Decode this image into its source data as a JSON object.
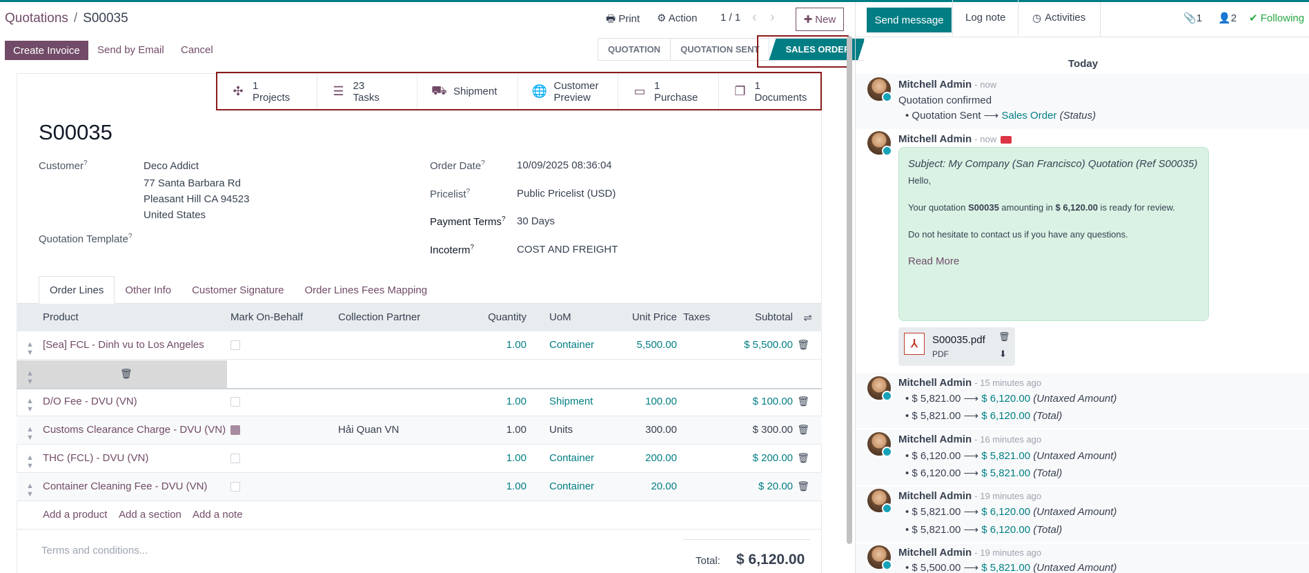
{
  "breadcrumb": {
    "parent": "Quotations",
    "separator": "/",
    "current": "S00035"
  },
  "header": {
    "print_label": "Print",
    "action_label": "Action",
    "pager": "1 / 1",
    "new_label": "New"
  },
  "actions": {
    "create_invoice": "Create Invoice",
    "send_by_email": "Send by Email",
    "cancel": "Cancel"
  },
  "status_steps": [
    "QUOTATION",
    "QUOTATION SENT",
    "SALES ORDER"
  ],
  "smart_buttons": [
    {
      "count": "1",
      "label": "Projects",
      "icon": "puzzle-icon"
    },
    {
      "count": "23",
      "label": "Tasks",
      "icon": "tasks-icon"
    },
    {
      "count": "",
      "label": "Shipment",
      "icon": "truck-icon"
    },
    {
      "count": "Customer",
      "label": "Preview",
      "icon": "globe-icon"
    },
    {
      "count": "1",
      "label": "Purchase",
      "icon": "credit-card-icon"
    },
    {
      "count": "1",
      "label": "Documents",
      "icon": "documents-icon"
    }
  ],
  "order": {
    "name": "S00035",
    "customer_label": "Customer",
    "customer_name": "Deco Addict",
    "address_1": "77 Santa Barbara Rd",
    "address_2": "Pleasant Hill CA 94523",
    "address_3": "United States",
    "template_label": "Quotation Template",
    "order_date_label": "Order Date",
    "order_date": "10/09/2025 08:36:04",
    "pricelist_label": "Pricelist",
    "pricelist": "Public Pricelist (USD)",
    "payment_terms_label": "Payment Terms",
    "payment_terms": "30 Days",
    "incoterm_label": "Incoterm",
    "incoterm": "COST AND FREIGHT",
    "help_mark": "?"
  },
  "tabs": [
    "Order Lines",
    "Other Info",
    "Customer Signature",
    "Order Lines Fees Mapping"
  ],
  "table": {
    "columns": [
      "Product",
      "Mark On-Behalf",
      "Collection Partner",
      "Quantity",
      "UoM",
      "Unit Price",
      "Taxes",
      "Subtotal"
    ],
    "rows": [
      {
        "product": "[Sea] FCL - Dinh vu to Los Angeles",
        "checked": false,
        "partner": "",
        "qty": "1.00",
        "uom": "Container",
        "price": "5,500.00",
        "subtotal": "$ 5,500.00"
      },
      {
        "product": "D/O Fee - DVU (VN)",
        "checked": false,
        "partner": "",
        "qty": "1.00",
        "uom": "Shipment",
        "price": "100.00",
        "subtotal": "$ 100.00"
      },
      {
        "product": "Customs Clearance Charge - DVU (VN)",
        "checked": true,
        "partner": "Hải Quan VN",
        "qty": "1.00",
        "uom": "Units",
        "price": "300.00",
        "subtotal": "$ 300.00"
      },
      {
        "product": "THC (FCL) - DVU (VN)",
        "checked": false,
        "partner": "",
        "qty": "1.00",
        "uom": "Container",
        "price": "200.00",
        "subtotal": "$ 200.00"
      },
      {
        "product": "Container Cleaning Fee - DVU (VN)",
        "checked": false,
        "partner": "",
        "qty": "1.00",
        "uom": "Container",
        "price": "20.00",
        "subtotal": "$ 20.00"
      }
    ],
    "add_product": "Add a product",
    "add_section": "Add a section",
    "add_note": "Add a note"
  },
  "terms_placeholder": "Terms and conditions...",
  "total_label": "Total:",
  "total_value": "$ 6,120.00",
  "chatter": {
    "send_message": "Send message",
    "log_note": "Log note",
    "activities": "Activities",
    "attachments_count": "1",
    "followers_count": "2",
    "following": "Following",
    "today": "Today",
    "author": "Mitchell Admin",
    "msg1": {
      "time": "- now",
      "text": "Quotation confirmed",
      "from": "Quotation Sent",
      "to": "Sales Order",
      "field": "(Status)"
    },
    "msg2": {
      "time": "- now",
      "subject": "Subject: My Company (San Francisco) Quotation (Ref S00035)",
      "hello": "Hello,",
      "body_a": "Your quotation ",
      "body_ref": "S00035",
      "body_b": " amounting in ",
      "body_amount": "$ 6,120.00",
      "body_c": " is ready for review.",
      "body2": "Do not hesitate to contact us if you have any questions.",
      "read_more": "Read More",
      "attachment_name": "S00035.pdf",
      "attachment_type": "PDF"
    },
    "msg3": {
      "time": "- 15 minutes ago",
      "l1_from": "$ 5,821.00",
      "l1_to": "$ 6,120.00",
      "l1_field": "(Untaxed Amount)",
      "l2_from": "$ 5,821.00",
      "l2_to": "$ 6,120.00",
      "l2_field": "(Total)"
    },
    "msg4": {
      "time": "- 16 minutes ago",
      "l1_from": "$ 6,120.00",
      "l1_to": "$ 5,821.00",
      "l1_field": "(Untaxed Amount)",
      "l2_from": "$ 6,120.00",
      "l2_to": "$ 5,821.00",
      "l2_field": "(Total)"
    },
    "msg5": {
      "time": "- 19 minutes ago",
      "l1_from": "$ 5,821.00",
      "l1_to": "$ 6,120.00",
      "l1_field": "(Untaxed Amount)",
      "l2_from": "$ 5,821.00",
      "l2_to": "$ 6,120.00",
      "l2_field": "(Total)"
    },
    "msg6": {
      "time": "- 19 minutes ago",
      "l1_from": "$ 5,500.00",
      "l1_to": "$ 5,821.00",
      "l1_field": "(Untaxed Amount)"
    }
  },
  "colors": {
    "brand": "#714B67",
    "accent": "#017e84",
    "highlight": "#8b1a1a"
  }
}
